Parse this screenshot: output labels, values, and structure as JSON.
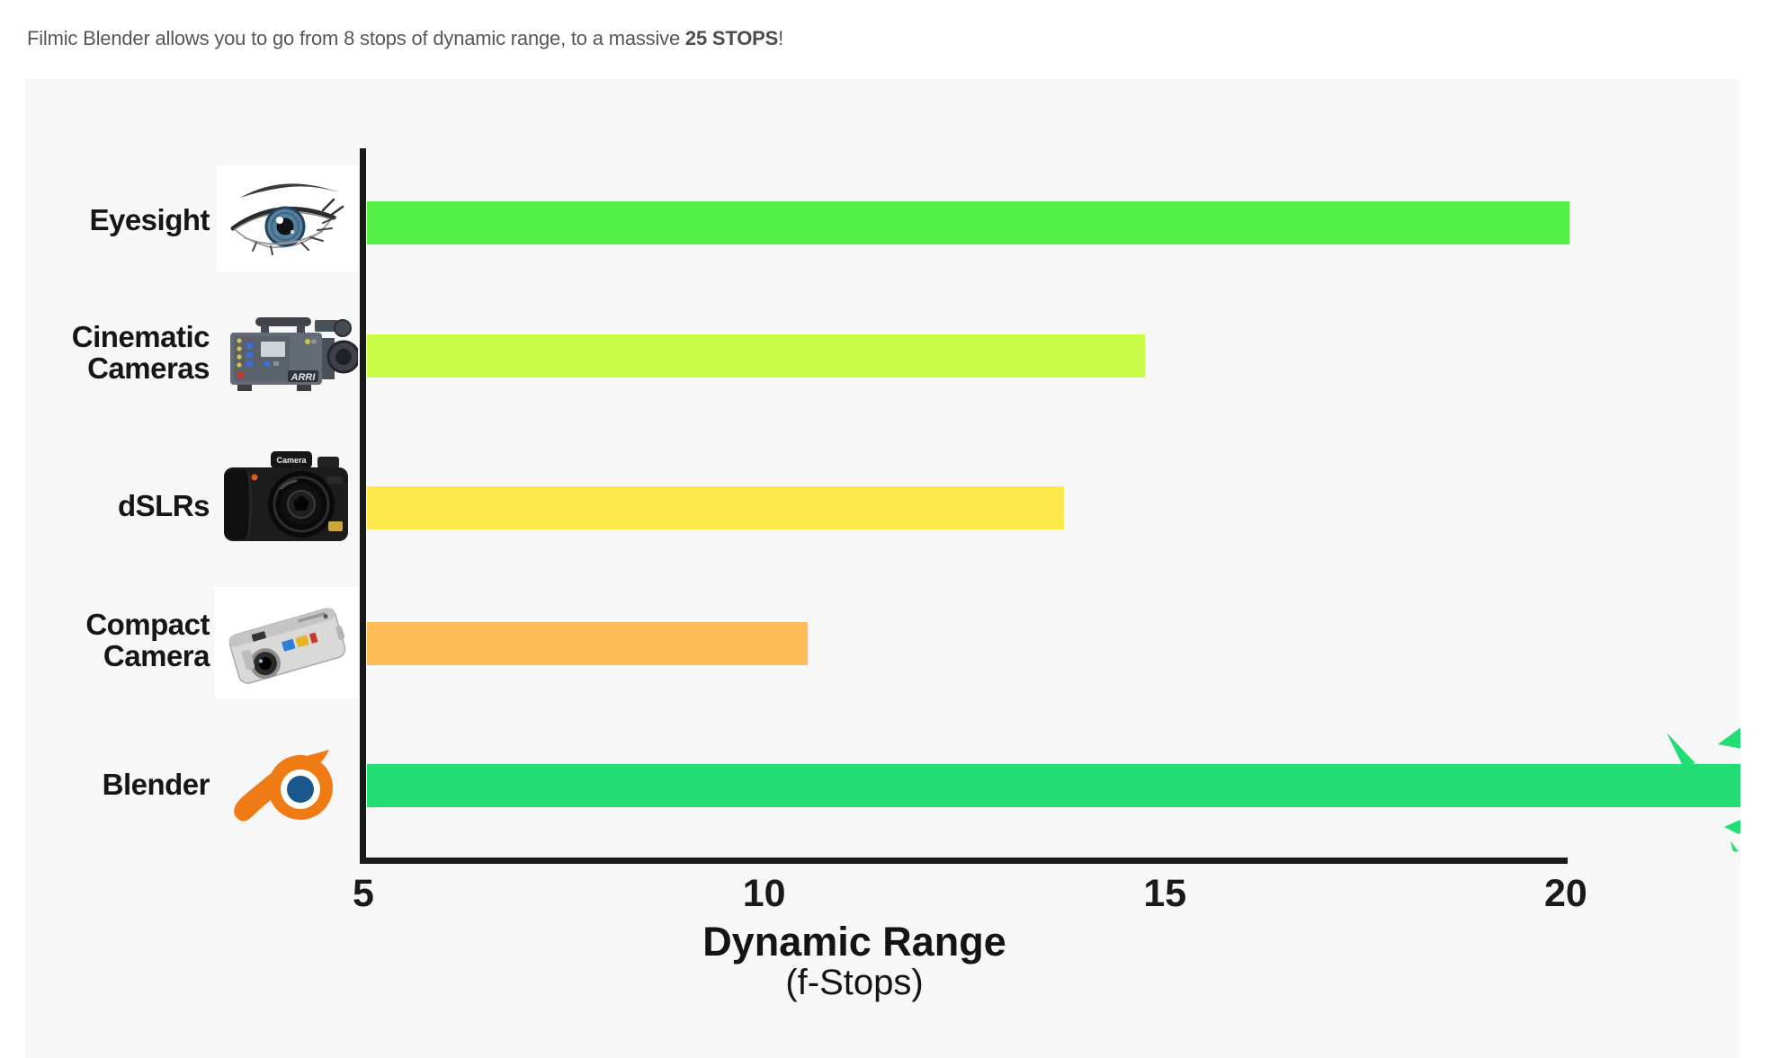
{
  "header": {
    "text_before": "Filmic Blender allows you to go from 8 stops of dynamic range, to a massive ",
    "highlight": "25 STOPS",
    "text_after": "!"
  },
  "chart_data": {
    "type": "bar",
    "orientation": "horizontal",
    "title": "",
    "categories": [
      "Eyesight",
      "Cinematic Cameras",
      "dSLRs",
      "Compact Camera",
      "Blender"
    ],
    "category_labels": [
      "Eyesight",
      "Cinematic\nCameras",
      "dSLRs",
      "Compact\nCamera",
      "Blender"
    ],
    "values": [
      20,
      14.7,
      13.7,
      10.5,
      25
    ],
    "bar_colors": [
      "#55ee44",
      "#c8fb46",
      "#ffe84a",
      "#ffbb55",
      "#21dd73"
    ],
    "xlabel": "Dynamic Range",
    "xlabel_sub": "(f-Stops)",
    "x_ticks": [
      5,
      10,
      15,
      20
    ],
    "xlim": [
      5,
      22.15
    ],
    "grid": false,
    "legend": "none",
    "annotation": "Blender bar overflows the right edge of the chart (25 stops) with green shatter marks",
    "icons": [
      "human-eye-photo",
      "arri-cinema-camera-photo",
      "dslr-camera-photo",
      "compact-camera-photo",
      "blender-logo"
    ],
    "icon_badges": {
      "cinematic": "ARRI",
      "dslr": "Camera"
    }
  },
  "colors": {
    "page_bg": "#ffffff",
    "panel_bg": "#f7f7f7",
    "axis": "#1a1a1a",
    "header_text": "#56575b",
    "blender_orange": "#f07a13",
    "blender_blue": "#19578c"
  }
}
